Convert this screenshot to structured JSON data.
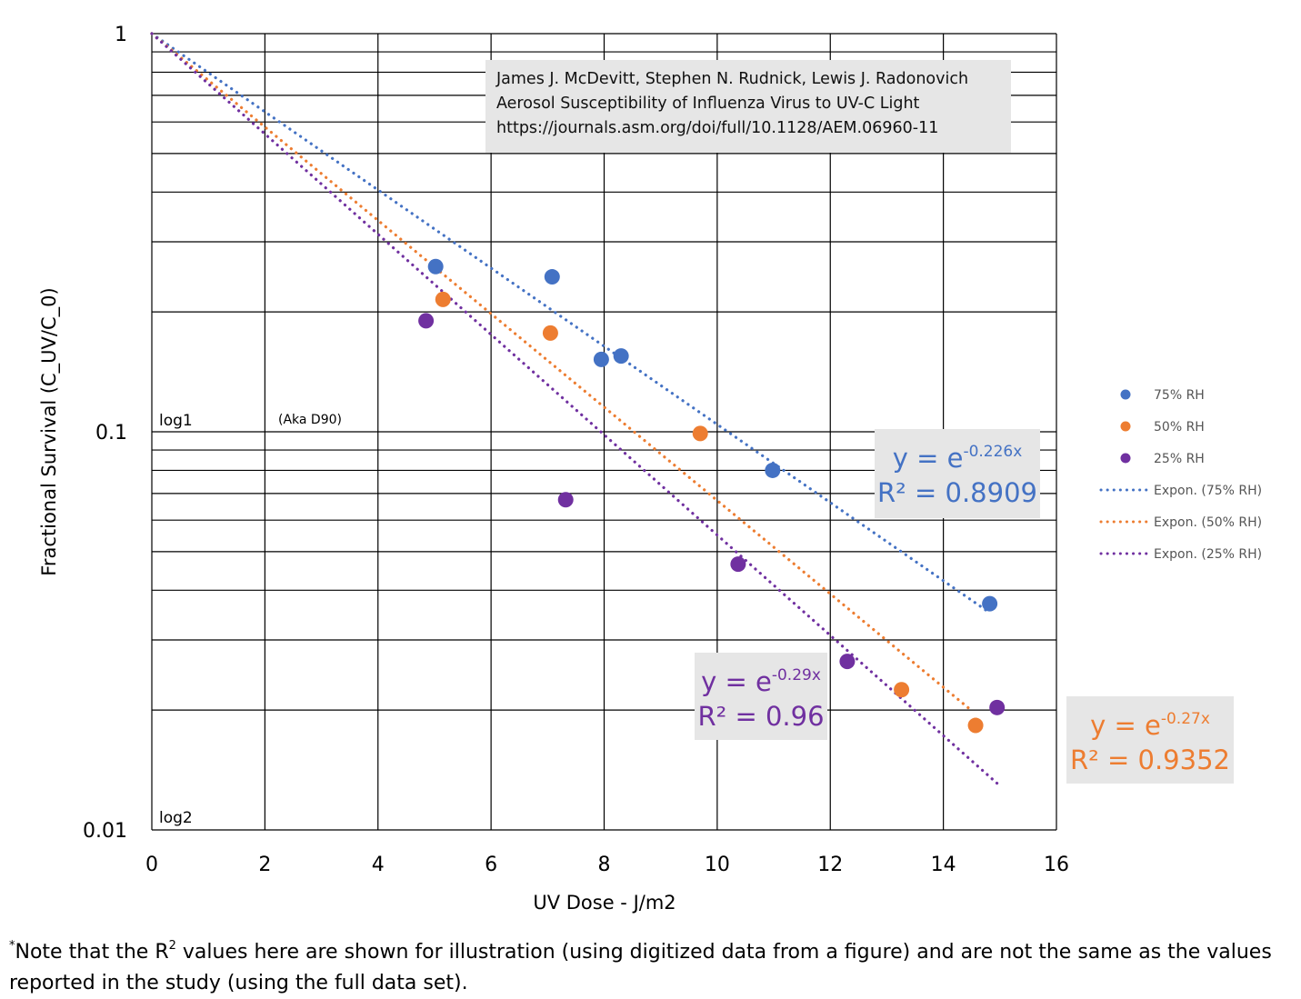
{
  "chart_data": {
    "type": "scatter",
    "xlabel": "UV Dose - J/m2",
    "ylabel": "Fractional Survival (C_UV/C_0)",
    "xlim": [
      0,
      16
    ],
    "ylim": [
      0.01,
      1
    ],
    "yscale": "log",
    "x_ticks": [
      "0",
      "2",
      "4",
      "6",
      "8",
      "10",
      "12",
      "14",
      "16"
    ],
    "y_ticks": [
      "1",
      "0.1",
      "0.01"
    ],
    "grid": true,
    "legend_position": "right",
    "series": [
      {
        "name": "75% RH",
        "color": "#4472c4",
        "points": [
          [
            5.02,
            0.26
          ],
          [
            7.08,
            0.245
          ],
          [
            7.95,
            0.152
          ],
          [
            8.3,
            0.155
          ],
          [
            10.98,
            0.08
          ],
          [
            14.82,
            0.037
          ]
        ]
      },
      {
        "name": "50% RH",
        "color": "#ed7d31",
        "points": [
          [
            5.15,
            0.215
          ],
          [
            7.05,
            0.177
          ],
          [
            9.7,
            0.099
          ],
          [
            13.26,
            0.0225
          ],
          [
            14.57,
            0.0183
          ]
        ]
      },
      {
        "name": "25% RH",
        "color": "#7030a0",
        "points": [
          [
            4.85,
            0.19
          ],
          [
            7.32,
            0.0675
          ],
          [
            10.37,
            0.0465
          ],
          [
            12.3,
            0.0265
          ],
          [
            14.95,
            0.0203
          ]
        ]
      }
    ],
    "trendlines": [
      {
        "name": "Expon. (75% RH)",
        "color": "#4472c4",
        "k": -0.226,
        "x_end": 14.8
      },
      {
        "name": "Expon. (50% RH)",
        "color": "#ed7d31",
        "k": -0.27,
        "x_end": 14.5
      },
      {
        "name": "Expon. (25% RH)",
        "color": "#7030a0",
        "k": -0.29,
        "x_end": 15.0
      }
    ],
    "annotations": {
      "log1": "log1",
      "aka": "(Aka D90)",
      "log2": "log2"
    }
  },
  "citation": {
    "authors": "James J. McDevitt, Stephen N. Rudnick, Lewis J. Radonovich",
    "title": "Aerosol Susceptibility of Influenza Virus to UV-C Light",
    "url": "https://journals.asm.org/doi/full/10.1128/AEM.06960-11"
  },
  "equations": {
    "blue": {
      "y_prefix": "y = e",
      "exponent": "-0.226x",
      "r2": "R² = 0.8909"
    },
    "purple": {
      "y_prefix": "y = e",
      "exponent": "-0.29x",
      "r2": "R² = 0.96"
    },
    "orange": {
      "y_prefix": "y = e",
      "exponent": "-0.27x",
      "r2": "R² = 0.9352"
    }
  },
  "footnote": {
    "star": "*",
    "part1": "Note that the R",
    "sup": "2",
    "part2": " values here are shown for illustration (using digitized data from a figure) and are not the same as the values reported in the study (using the full data set)."
  }
}
